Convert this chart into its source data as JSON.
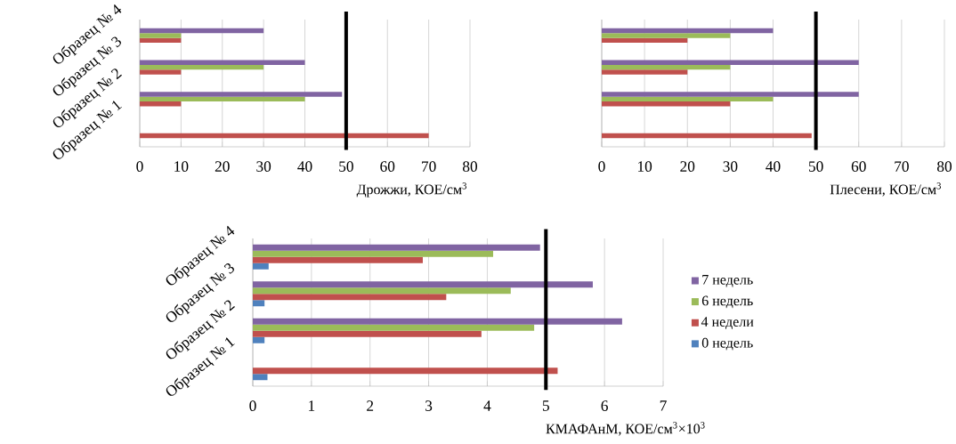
{
  "chart_data": [
    {
      "type": "bar",
      "orientation": "horizontal",
      "xlabel": "Дрожжи, КОЕ/см$^{3}$",
      "categories": [
        "Образец № 4",
        "Образец № 3",
        "Образец № 2",
        "Образец № 1"
      ],
      "xlim": [
        0,
        80
      ],
      "xticks": [
        0,
        10,
        20,
        30,
        40,
        50,
        60,
        70,
        80
      ],
      "grid": "x",
      "ref_lines": [
        {
          "axis": "x",
          "value": 50,
          "color": "#000000"
        }
      ],
      "series": [
        {
          "color": "#c0504d",
          "values": [
            10,
            10,
            10,
            70
          ]
        },
        {
          "color": "#9bbb59",
          "values": [
            10,
            30,
            40,
            null
          ]
        },
        {
          "color": "#8064a2",
          "values": [
            30,
            40,
            49,
            null
          ]
        }
      ]
    },
    {
      "type": "bar",
      "orientation": "horizontal",
      "xlabel": "Плесени, КОЕ/см$^{3}$",
      "categories": [
        null,
        null,
        null,
        null
      ],
      "xlim": [
        0,
        80
      ],
      "xticks": [
        0,
        10,
        20,
        30,
        40,
        50,
        60,
        70,
        80
      ],
      "grid": "x",
      "ref_lines": [
        {
          "axis": "x",
          "value": 50,
          "color": "#000000"
        }
      ],
      "series": [
        {
          "color": "#c0504d",
          "values": [
            20,
            20,
            30,
            49
          ]
        },
        {
          "color": "#9bbb59",
          "values": [
            30,
            30,
            40,
            null
          ]
        },
        {
          "color": "#8064a2",
          "values": [
            40,
            60,
            60,
            null
          ]
        }
      ]
    },
    {
      "type": "bar",
      "orientation": "horizontal",
      "xlabel": "КМАФАнМ, КОЕ/см$^{3}$×10$^{3}$",
      "categories": [
        "Образец № 4",
        "Образец № 3",
        "Образец № 2",
        "Образец № 1"
      ],
      "xlim": [
        0,
        7
      ],
      "xticks": [
        0,
        1,
        2,
        3,
        4,
        5,
        6,
        7
      ],
      "grid": "x",
      "legend": "right",
      "ref_lines": [
        {
          "axis": "x",
          "value": 5,
          "color": "#000000"
        }
      ],
      "series": [
        {
          "name": "0 недель",
          "color": "#4f81bd",
          "values": [
            0.27,
            0.2,
            0.2,
            0.25
          ]
        },
        {
          "name": "4 недели",
          "color": "#c0504d",
          "values": [
            2.9,
            3.3,
            3.9,
            5.2
          ]
        },
        {
          "name": "6 недель",
          "color": "#9bbb59",
          "values": [
            4.1,
            4.4,
            4.8,
            null
          ]
        },
        {
          "name": "7 недель",
          "color": "#8064a2",
          "values": [
            4.9,
            5.8,
            6.3,
            null
          ]
        }
      ]
    }
  ]
}
